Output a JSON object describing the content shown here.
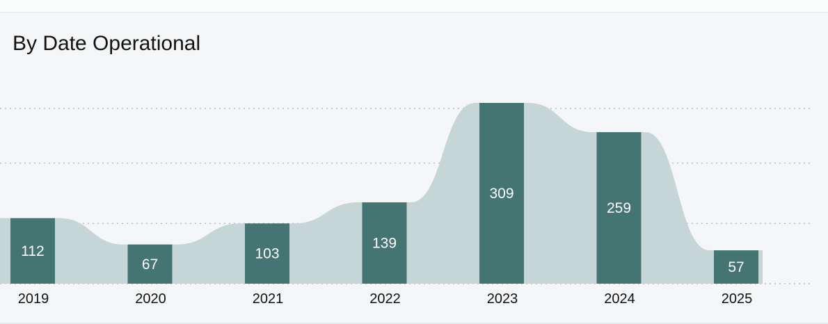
{
  "chart_data": {
    "type": "bar",
    "title": "By Date Operational",
    "categories": [
      "2019",
      "2020",
      "2021",
      "2022",
      "2023",
      "2024",
      "2025"
    ],
    "values": [
      112,
      67,
      103,
      139,
      309,
      259,
      57
    ],
    "ylim": [
      0,
      309
    ],
    "grid": true,
    "bar_color": "#457573",
    "area_color": "#c6d5d5",
    "grid_color": "#b5bcbf"
  }
}
